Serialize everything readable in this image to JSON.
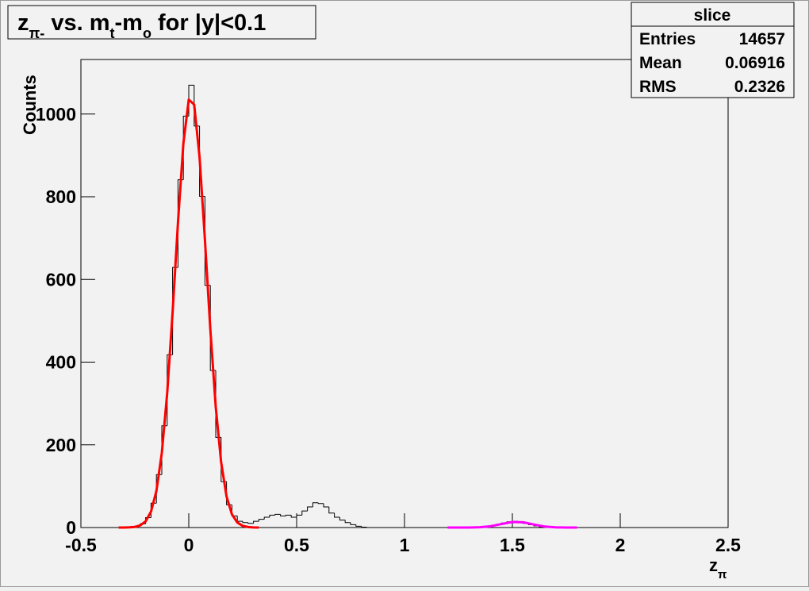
{
  "chart_data": {
    "type": "histogram",
    "title": [
      "z",
      {
        "sub": "π-"
      },
      " vs. m",
      {
        "sub": "t"
      },
      "-m",
      {
        "sub": "o"
      },
      " for |y|<0.1"
    ],
    "x_label": [
      "z",
      {
        "sub": "π"
      }
    ],
    "y_label": "Counts",
    "color": "#000000",
    "bins": [
      -0.5,
      -0.475,
      -0.45,
      -0.425,
      -0.4,
      -0.375,
      -0.35,
      -0.325,
      -0.3,
      -0.275,
      -0.25,
      -0.225,
      -0.2,
      -0.175,
      -0.15,
      -0.125,
      -0.1,
      -0.075,
      -0.05,
      -0.025,
      0,
      0.025,
      0.05,
      0.075,
      0.1,
      0.125,
      0.15,
      0.175,
      0.2,
      0.225,
      0.25,
      0.275,
      0.3,
      0.325,
      0.35,
      0.375,
      0.4,
      0.425,
      0.45,
      0.475,
      0.5,
      0.525,
      0.55,
      0.575,
      0.6,
      0.625,
      0.65,
      0.675,
      0.7,
      0.725,
      0.75,
      0.775,
      0.8,
      0.825,
      0.85,
      0.875,
      0.9,
      0.925,
      0.95,
      0.975,
      1,
      1.025,
      1.05,
      1.075,
      1.1,
      1.125,
      1.15,
      1.175,
      1.2,
      1.225,
      1.25,
      1.275,
      1.3,
      1.325,
      1.35,
      1.375,
      1.4,
      1.425,
      1.45,
      1.475,
      1.5,
      1.525,
      1.55,
      1.575,
      1.6,
      1.625,
      1.65,
      1.675,
      1.7,
      1.725,
      1.75,
      1.775,
      1.8,
      1.825,
      1.85,
      1.875,
      1.9,
      1.925,
      1.95,
      1.975,
      2,
      2.025,
      2.05,
      2.075,
      2.1,
      2.125,
      2.15,
      2.175,
      2.2,
      2.225,
      2.25,
      2.275,
      2.3,
      2.325,
      2.35,
      2.375,
      2.4,
      2.425,
      2.45,
      2.475,
      2.5
    ],
    "values": [
      0,
      0,
      0,
      0,
      0,
      0,
      0,
      0,
      0,
      1,
      3,
      9,
      24,
      59,
      128,
      246,
      418,
      629,
      841,
      995,
      1070,
      971,
      801,
      586,
      380,
      218,
      111,
      55,
      28,
      15,
      12,
      10,
      15,
      20,
      25,
      30,
      32,
      28,
      30,
      25,
      30,
      40,
      50,
      60,
      58,
      50,
      35,
      25,
      18,
      12,
      7,
      3,
      1,
      0,
      0,
      0,
      0,
      0,
      0,
      0,
      0,
      0,
      0,
      0,
      0,
      0,
      0,
      0,
      0,
      0,
      0,
      0,
      0,
      1,
      2,
      3,
      5,
      8,
      11,
      14,
      15,
      13,
      10,
      7,
      4,
      2,
      1,
      0,
      0,
      0,
      0,
      0,
      0,
      0,
      0,
      0,
      0,
      0,
      0,
      0,
      0,
      0,
      0,
      0,
      0,
      0,
      0,
      0,
      0,
      0,
      0,
      0,
      0,
      0,
      0,
      0,
      0,
      0,
      0,
      0
    ],
    "fits": [
      {
        "color": "#ff0000",
        "x": [
          -0.325,
          -0.3,
          -0.275,
          -0.25,
          -0.225,
          -0.2,
          -0.175,
          -0.15,
          -0.125,
          -0.1,
          -0.075,
          -0.05,
          -0.025,
          0,
          0.025,
          0.05,
          0.075,
          0.1,
          0.125,
          0.15,
          0.175,
          0.2,
          0.225,
          0.25,
          0.275,
          0.3,
          0.325
        ],
        "values": [
          0,
          0.1,
          0.4,
          1.5,
          5.1,
          14.9,
          38.5,
          88.4,
          180,
          325,
          520,
          738,
          929,
          1035,
          1023,
          896,
          695,
          479,
          292,
          158,
          75.4,
          32,
          12.1,
          4,
          1.2,
          0.3,
          0.1
        ]
      },
      {
        "color": "#ff00ff",
        "x": [
          1.2,
          1.25,
          1.3,
          1.35,
          1.4,
          1.45,
          1.5,
          1.55,
          1.6,
          1.65,
          1.7,
          1.75,
          1.8
        ],
        "values": [
          0,
          0,
          0.1,
          0.7,
          3.2,
          8.5,
          13.4,
          12.8,
          7.3,
          2.5,
          0.5,
          0.1,
          0
        ]
      }
    ],
    "xlim": [
      -0.5,
      2.5
    ],
    "xticks": [
      -0.5,
      0,
      0.5,
      1,
      1.5,
      2,
      2.5
    ],
    "ylim": [
      0,
      1132
    ],
    "yticks": [
      0,
      200,
      400,
      600,
      800,
      1000
    ],
    "stats": {
      "title": "slice",
      "rows": [
        [
          "Entries",
          14657
        ],
        [
          "Mean",
          0.06916
        ],
        [
          "RMS",
          0.2326
        ]
      ]
    }
  }
}
